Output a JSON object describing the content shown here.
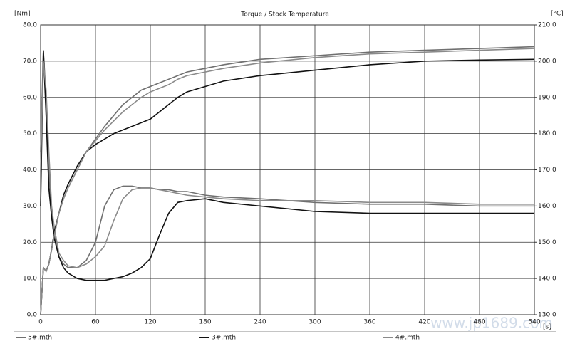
{
  "chart_data": {
    "type": "line",
    "title": "Torque / Stock Temperature",
    "y_label": "[Nm]",
    "y2_label": "[°C]",
    "x_label": "[s]",
    "watermark": "www.jp1689.com",
    "x": [
      0,
      3,
      6,
      9,
      12,
      15,
      20,
      25,
      30,
      40,
      50,
      60,
      70,
      80,
      90,
      100,
      110,
      120,
      130,
      140,
      150,
      160,
      180,
      200,
      240,
      300,
      360,
      420,
      480,
      540
    ],
    "xlim": [
      0,
      540
    ],
    "xticks": [
      0,
      60,
      120,
      180,
      240,
      300,
      360,
      420,
      480,
      540
    ],
    "ylim": [
      0,
      80
    ],
    "yticks": [
      {
        "value": 0,
        "label": "0.0"
      },
      {
        "value": 10,
        "label": "10.0"
      },
      {
        "value": 20,
        "label": "20.0"
      },
      {
        "value": 30,
        "label": "30.0"
      },
      {
        "value": 40,
        "label": "40.0"
      },
      {
        "value": 50,
        "label": "50.0"
      },
      {
        "value": 60,
        "label": "60.0"
      },
      {
        "value": 70,
        "label": "70.0"
      },
      {
        "value": 80,
        "label": "80.0"
      }
    ],
    "y2lim": [
      130,
      210
    ],
    "y2ticks": [
      {
        "value": 130,
        "label": "130.0"
      },
      {
        "value": 140,
        "label": "140.0"
      },
      {
        "value": 150,
        "label": "150.0"
      },
      {
        "value": 160,
        "label": "160.0"
      },
      {
        "value": 170,
        "label": "170.0"
      },
      {
        "value": 180,
        "label": "180.0"
      },
      {
        "value": 190,
        "label": "190.0"
      },
      {
        "value": 200,
        "label": "200.0"
      },
      {
        "value": 210,
        "label": "210.0"
      }
    ],
    "grid": true,
    "legend": "bottom",
    "series": [
      {
        "name": "5#.mth",
        "color": "#707070",
        "values": [
          45,
          73,
          60,
          40,
          28,
          22,
          16,
          14,
          13,
          13,
          15,
          20,
          30,
          34.5,
          35.5,
          35.5,
          35,
          35,
          34.5,
          34.5,
          34,
          34,
          33,
          32.5,
          32,
          31,
          30.5,
          30.5,
          30,
          30
        ]
      },
      {
        "name": "3#.mth",
        "color": "#111111",
        "values": [
          30,
          73,
          55,
          35,
          27,
          21,
          16,
          13,
          11.5,
          10,
          9.5,
          9.5,
          9.5,
          10,
          10.5,
          11.5,
          13,
          15.5,
          22,
          28,
          31,
          31.5,
          32,
          31,
          30,
          28.5,
          28,
          28,
          28,
          28
        ]
      },
      {
        "name": "4#.mth",
        "color": "#8a8a8a",
        "values": [
          40,
          70,
          62,
          45,
          30,
          24,
          17,
          15,
          13.5,
          13,
          14,
          16,
          19,
          26,
          32,
          34.5,
          35,
          35,
          34.5,
          34,
          33.5,
          33,
          32.5,
          32,
          31.5,
          31.5,
          31,
          31,
          30.5,
          30.5
        ]
      },
      {
        "color": "#707070",
        "axis": "y2",
        "values": [
          130,
          143,
          142,
          144,
          148,
          152,
          158,
          162,
          165,
          170,
          175,
          178.5,
          182,
          185,
          188,
          190,
          192,
          193,
          194,
          195,
          196,
          197,
          198,
          199,
          200.5,
          201.5,
          202.5,
          203,
          203.5,
          204
        ]
      },
      {
        "color": "#111111",
        "axis": "y2",
        "values": [
          130,
          143,
          142,
          144,
          148,
          153,
          158,
          163,
          166,
          171,
          175,
          177,
          178.5,
          180,
          181,
          182,
          183,
          184,
          186,
          188,
          190,
          191.5,
          193,
          194.5,
          196,
          197.5,
          199,
          200,
          200.3,
          200.5
        ]
      },
      {
        "color": "#8a8a8a",
        "axis": "y2",
        "values": [
          130,
          143,
          142,
          144,
          148,
          152,
          158,
          162,
          165,
          170,
          175,
          178,
          181,
          183.5,
          186,
          188,
          190,
          191.5,
          192.5,
          193.5,
          195,
          196,
          197,
          198,
          199.5,
          201,
          202,
          202.5,
          203,
          203.5
        ]
      }
    ]
  }
}
